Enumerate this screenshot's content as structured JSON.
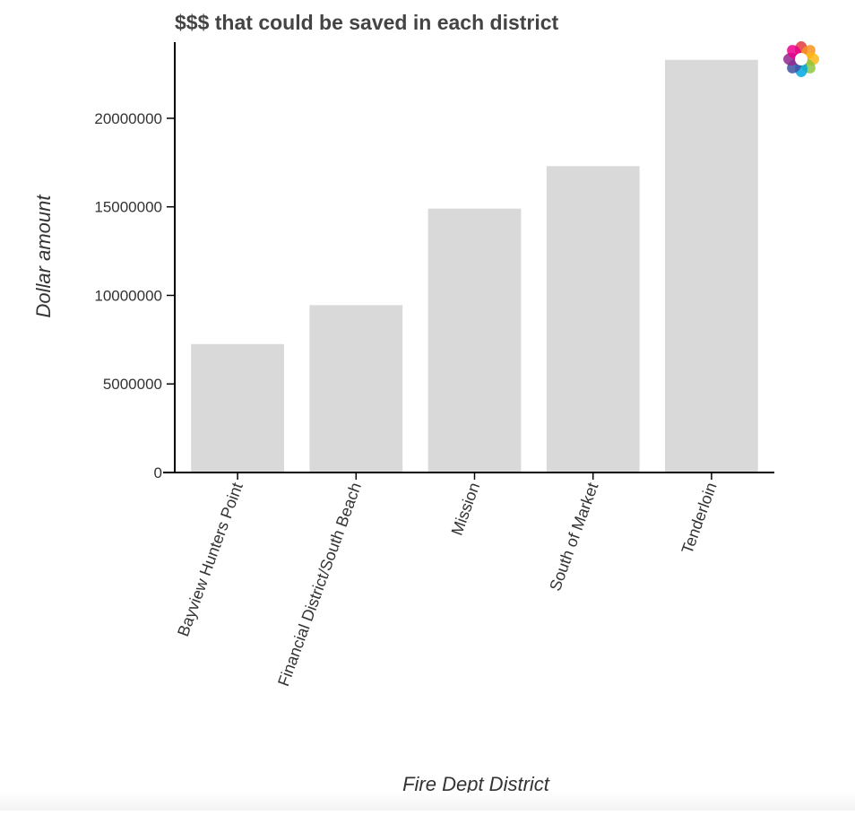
{
  "chart_data": {
    "type": "bar",
    "title": "$$$ that could be saved in each district",
    "xlabel": "Fire Dept District",
    "ylabel": "Dollar amount",
    "categories": [
      "Bayview Hunters Point",
      "Financial District/South Beach",
      "Mission",
      "South of Market",
      "Tenderloin"
    ],
    "values": [
      7250000,
      9450000,
      14900000,
      17300000,
      23300000
    ],
    "ylim": [
      0,
      24300000
    ],
    "yticks": [
      0,
      5000000,
      10000000,
      15000000,
      20000000
    ],
    "ytick_labels": [
      "0",
      "5000000",
      "10000000",
      "15000000",
      "20000000"
    ],
    "bar_color": "#d9d9d9",
    "grid": false,
    "legend": "none"
  },
  "toolbar": {
    "logo_icon": "bokeh-logo-icon",
    "logo_colors": [
      "#e03a3e",
      "#f7941d",
      "#fdb913",
      "#8dc63f",
      "#00a8e1",
      "#3f52a3",
      "#92278f",
      "#ec008c"
    ]
  }
}
